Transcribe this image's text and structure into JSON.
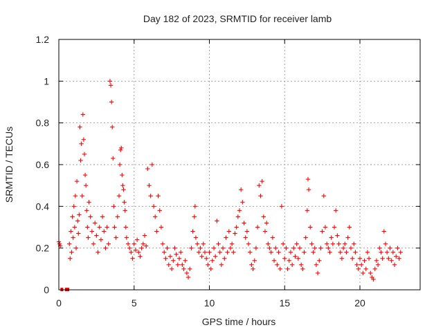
{
  "chart_data": {
    "type": "scatter",
    "title": "Day 182 of 2023, SRMTID for receiver lamb",
    "xlabel": "GPS time / hours",
    "ylabel": "SRMTID / TECUs",
    "xlim": [
      0,
      24
    ],
    "ylim": [
      0,
      1.2
    ],
    "xticks": [
      0,
      5,
      10,
      15,
      20
    ],
    "yticks": [
      0,
      0.2,
      0.4,
      0.6,
      0.8,
      1,
      1.2
    ],
    "xtick_labels": [
      "0",
      "5",
      "10",
      "15",
      "20"
    ],
    "ytick_labels": [
      "0",
      "0.2",
      "0.4",
      "0.6",
      "0.8",
      "1",
      "1.2"
    ],
    "grid": true,
    "marker": "+",
    "colors": {
      "series": "#ff0000",
      "grid": "#a0a0a0",
      "frame": "#000000"
    },
    "series": [
      {
        "name": "SRMTID",
        "points": [
          [
            0.0,
            0.23
          ],
          [
            0.05,
            0.22
          ],
          [
            0.1,
            0.21
          ],
          [
            0.7,
            0.22
          ],
          [
            0.75,
            0.15
          ],
          [
            0.8,
            0.28
          ],
          [
            0.85,
            0.18
          ],
          [
            0.9,
            0.35
          ],
          [
            0.95,
            0.25
          ],
          [
            1.0,
            0.4
          ],
          [
            1.05,
            0.3
          ],
          [
            1.1,
            0.45
          ],
          [
            1.15,
            0.2
          ],
          [
            1.2,
            0.52
          ],
          [
            1.25,
            0.33
          ],
          [
            1.3,
            0.27
          ],
          [
            1.35,
            0.36
          ],
          [
            1.4,
            0.78
          ],
          [
            1.45,
            0.62
          ],
          [
            1.5,
            0.7
          ],
          [
            1.55,
            0.45
          ],
          [
            1.6,
            0.84
          ],
          [
            1.65,
            0.72
          ],
          [
            1.7,
            0.65
          ],
          [
            1.75,
            0.55
          ],
          [
            1.8,
            0.5
          ],
          [
            1.85,
            0.38
          ],
          [
            1.9,
            0.3
          ],
          [
            1.95,
            0.25
          ],
          [
            2.0,
            0.42
          ],
          [
            2.1,
            0.35
          ],
          [
            2.2,
            0.28
          ],
          [
            2.3,
            0.22
          ],
          [
            2.4,
            0.32
          ],
          [
            2.5,
            0.26
          ],
          [
            2.6,
            0.18
          ],
          [
            2.7,
            0.3
          ],
          [
            2.8,
            0.24
          ],
          [
            2.9,
            0.35
          ],
          [
            3.0,
            0.28
          ],
          [
            3.1,
            0.2
          ],
          [
            3.2,
            0.3
          ],
          [
            3.3,
            0.22
          ],
          [
            3.4,
            1.0
          ],
          [
            3.45,
            0.98
          ],
          [
            3.5,
            0.9
          ],
          [
            3.55,
            0.78
          ],
          [
            3.6,
            0.63
          ],
          [
            3.65,
            0.4
          ],
          [
            3.7,
            0.3
          ],
          [
            3.8,
            0.25
          ],
          [
            3.9,
            0.35
          ],
          [
            4.0,
            0.45
          ],
          [
            4.05,
            0.6
          ],
          [
            4.1,
            0.67
          ],
          [
            4.15,
            0.68
          ],
          [
            4.2,
            0.55
          ],
          [
            4.25,
            0.5
          ],
          [
            4.3,
            0.48
          ],
          [
            4.35,
            0.42
          ],
          [
            4.4,
            0.38
          ],
          [
            4.45,
            0.3
          ],
          [
            4.5,
            0.25
          ],
          [
            4.6,
            0.22
          ],
          [
            4.7,
            0.2
          ],
          [
            4.8,
            0.18
          ],
          [
            4.9,
            0.15
          ],
          [
            5.0,
            0.22
          ],
          [
            5.1,
            0.19
          ],
          [
            5.2,
            0.24
          ],
          [
            5.3,
            0.18
          ],
          [
            5.4,
            0.16
          ],
          [
            5.5,
            0.2
          ],
          [
            5.6,
            0.22
          ],
          [
            5.7,
            0.26
          ],
          [
            5.8,
            0.21
          ],
          [
            5.9,
            0.58
          ],
          [
            6.0,
            0.5
          ],
          [
            6.1,
            0.45
          ],
          [
            6.2,
            0.6
          ],
          [
            6.3,
            0.4
          ],
          [
            6.4,
            0.35
          ],
          [
            6.5,
            0.28
          ],
          [
            6.6,
            0.45
          ],
          [
            6.7,
            0.38
          ],
          [
            6.8,
            0.3
          ],
          [
            6.9,
            0.22
          ],
          [
            7.0,
            0.18
          ],
          [
            7.1,
            0.15
          ],
          [
            7.2,
            0.2
          ],
          [
            7.3,
            0.12
          ],
          [
            7.4,
            0.16
          ],
          [
            7.5,
            0.1
          ],
          [
            7.6,
            0.14
          ],
          [
            7.7,
            0.2
          ],
          [
            7.8,
            0.17
          ],
          [
            7.9,
            0.12
          ],
          [
            8.0,
            0.15
          ],
          [
            8.1,
            0.18
          ],
          [
            8.2,
            0.12
          ],
          [
            8.3,
            0.1
          ],
          [
            8.4,
            0.14
          ],
          [
            8.5,
            0.08
          ],
          [
            8.6,
            0.06
          ],
          [
            8.7,
            0.1
          ],
          [
            8.8,
            0.2
          ],
          [
            8.9,
            0.28
          ],
          [
            9.0,
            0.35
          ],
          [
            9.05,
            0.4
          ],
          [
            9.1,
            0.25
          ],
          [
            9.2,
            0.22
          ],
          [
            9.3,
            0.18
          ],
          [
            9.4,
            0.2
          ],
          [
            9.5,
            0.16
          ],
          [
            9.6,
            0.22
          ],
          [
            9.7,
            0.18
          ],
          [
            9.8,
            0.15
          ],
          [
            9.9,
            0.12
          ],
          [
            10.0,
            0.18
          ],
          [
            10.1,
            0.1
          ],
          [
            10.2,
            0.14
          ],
          [
            10.3,
            0.2
          ],
          [
            10.4,
            0.16
          ],
          [
            10.5,
            0.33
          ],
          [
            10.6,
            0.22
          ],
          [
            10.7,
            0.18
          ],
          [
            10.8,
            0.12
          ],
          [
            10.9,
            0.2
          ],
          [
            11.0,
            0.15
          ],
          [
            11.1,
            0.25
          ],
          [
            11.2,
            0.18
          ],
          [
            11.3,
            0.28
          ],
          [
            11.4,
            0.2
          ],
          [
            11.5,
            0.22
          ],
          [
            11.6,
            0.18
          ],
          [
            11.7,
            0.27
          ],
          [
            11.8,
            0.3
          ],
          [
            11.9,
            0.35
          ],
          [
            12.0,
            0.38
          ],
          [
            12.1,
            0.48
          ],
          [
            12.2,
            0.42
          ],
          [
            12.3,
            0.32
          ],
          [
            12.4,
            0.25
          ],
          [
            12.5,
            0.28
          ],
          [
            12.6,
            0.22
          ],
          [
            12.7,
            0.18
          ],
          [
            12.8,
            0.12
          ],
          [
            12.9,
            0.1
          ],
          [
            13.0,
            0.14
          ],
          [
            13.1,
            0.2
          ],
          [
            13.2,
            0.3
          ],
          [
            13.3,
            0.5
          ],
          [
            13.4,
            0.45
          ],
          [
            13.5,
            0.52
          ],
          [
            13.6,
            0.35
          ],
          [
            13.7,
            0.28
          ],
          [
            13.8,
            0.32
          ],
          [
            13.9,
            0.22
          ],
          [
            14.0,
            0.2
          ],
          [
            14.1,
            0.18
          ],
          [
            14.2,
            0.25
          ],
          [
            14.3,
            0.14
          ],
          [
            14.4,
            0.2
          ],
          [
            14.5,
            0.12
          ],
          [
            14.6,
            0.18
          ],
          [
            14.7,
            0.1
          ],
          [
            14.8,
            0.4
          ],
          [
            14.9,
            0.22
          ],
          [
            15.0,
            0.15
          ],
          [
            15.1,
            0.2
          ],
          [
            15.2,
            0.1
          ],
          [
            15.3,
            0.14
          ],
          [
            15.4,
            0.18
          ],
          [
            15.5,
            0.12
          ],
          [
            15.6,
            0.2
          ],
          [
            15.7,
            0.16
          ],
          [
            15.8,
            0.22
          ],
          [
            15.9,
            0.15
          ],
          [
            16.0,
            0.2
          ],
          [
            16.1,
            0.12
          ],
          [
            16.2,
            0.1
          ],
          [
            16.3,
            0.18
          ],
          [
            16.4,
            0.25
          ],
          [
            16.5,
            0.38
          ],
          [
            16.55,
            0.53
          ],
          [
            16.6,
            0.48
          ],
          [
            16.7,
            0.3
          ],
          [
            16.8,
            0.22
          ],
          [
            16.9,
            0.18
          ],
          [
            17.0,
            0.2
          ],
          [
            17.1,
            0.12
          ],
          [
            17.2,
            0.08
          ],
          [
            17.3,
            0.14
          ],
          [
            17.4,
            0.2
          ],
          [
            17.5,
            0.28
          ],
          [
            17.6,
            0.45
          ],
          [
            17.7,
            0.3
          ],
          [
            17.8,
            0.22
          ],
          [
            17.9,
            0.2
          ],
          [
            18.0,
            0.18
          ],
          [
            18.1,
            0.25
          ],
          [
            18.2,
            0.22
          ],
          [
            18.3,
            0.3
          ],
          [
            18.4,
            0.38
          ],
          [
            18.5,
            0.26
          ],
          [
            18.6,
            0.22
          ],
          [
            18.7,
            0.18
          ],
          [
            18.8,
            0.15
          ],
          [
            18.9,
            0.2
          ],
          [
            19.0,
            0.22
          ],
          [
            19.1,
            0.18
          ],
          [
            19.2,
            0.25
          ],
          [
            19.3,
            0.3
          ],
          [
            19.4,
            0.2
          ],
          [
            19.5,
            0.15
          ],
          [
            19.6,
            0.22
          ],
          [
            19.7,
            0.18
          ],
          [
            19.8,
            0.12
          ],
          [
            19.9,
            0.1
          ],
          [
            20.0,
            0.15
          ],
          [
            20.1,
            0.12
          ],
          [
            20.2,
            0.08
          ],
          [
            20.3,
            0.14
          ],
          [
            20.4,
            0.1
          ],
          [
            20.5,
            0.18
          ],
          [
            20.6,
            0.15
          ],
          [
            20.7,
            0.08
          ],
          [
            20.8,
            0.06
          ],
          [
            20.9,
            0.05
          ],
          [
            21.0,
            0.1
          ],
          [
            21.1,
            0.14
          ],
          [
            21.2,
            0.12
          ],
          [
            21.3,
            0.2
          ],
          [
            21.4,
            0.18
          ],
          [
            21.5,
            0.15
          ],
          [
            21.6,
            0.28
          ],
          [
            21.7,
            0.22
          ],
          [
            21.8,
            0.18
          ],
          [
            21.9,
            0.15
          ],
          [
            22.0,
            0.2
          ],
          [
            22.1,
            0.14
          ],
          [
            22.2,
            0.18
          ],
          [
            22.3,
            0.12
          ],
          [
            22.4,
            0.16
          ],
          [
            22.5,
            0.2
          ],
          [
            22.6,
            0.15
          ],
          [
            22.7,
            0.18
          ]
        ],
        "zero_points_x": [
          0.2,
          0.5,
          0.6
        ]
      }
    ]
  }
}
